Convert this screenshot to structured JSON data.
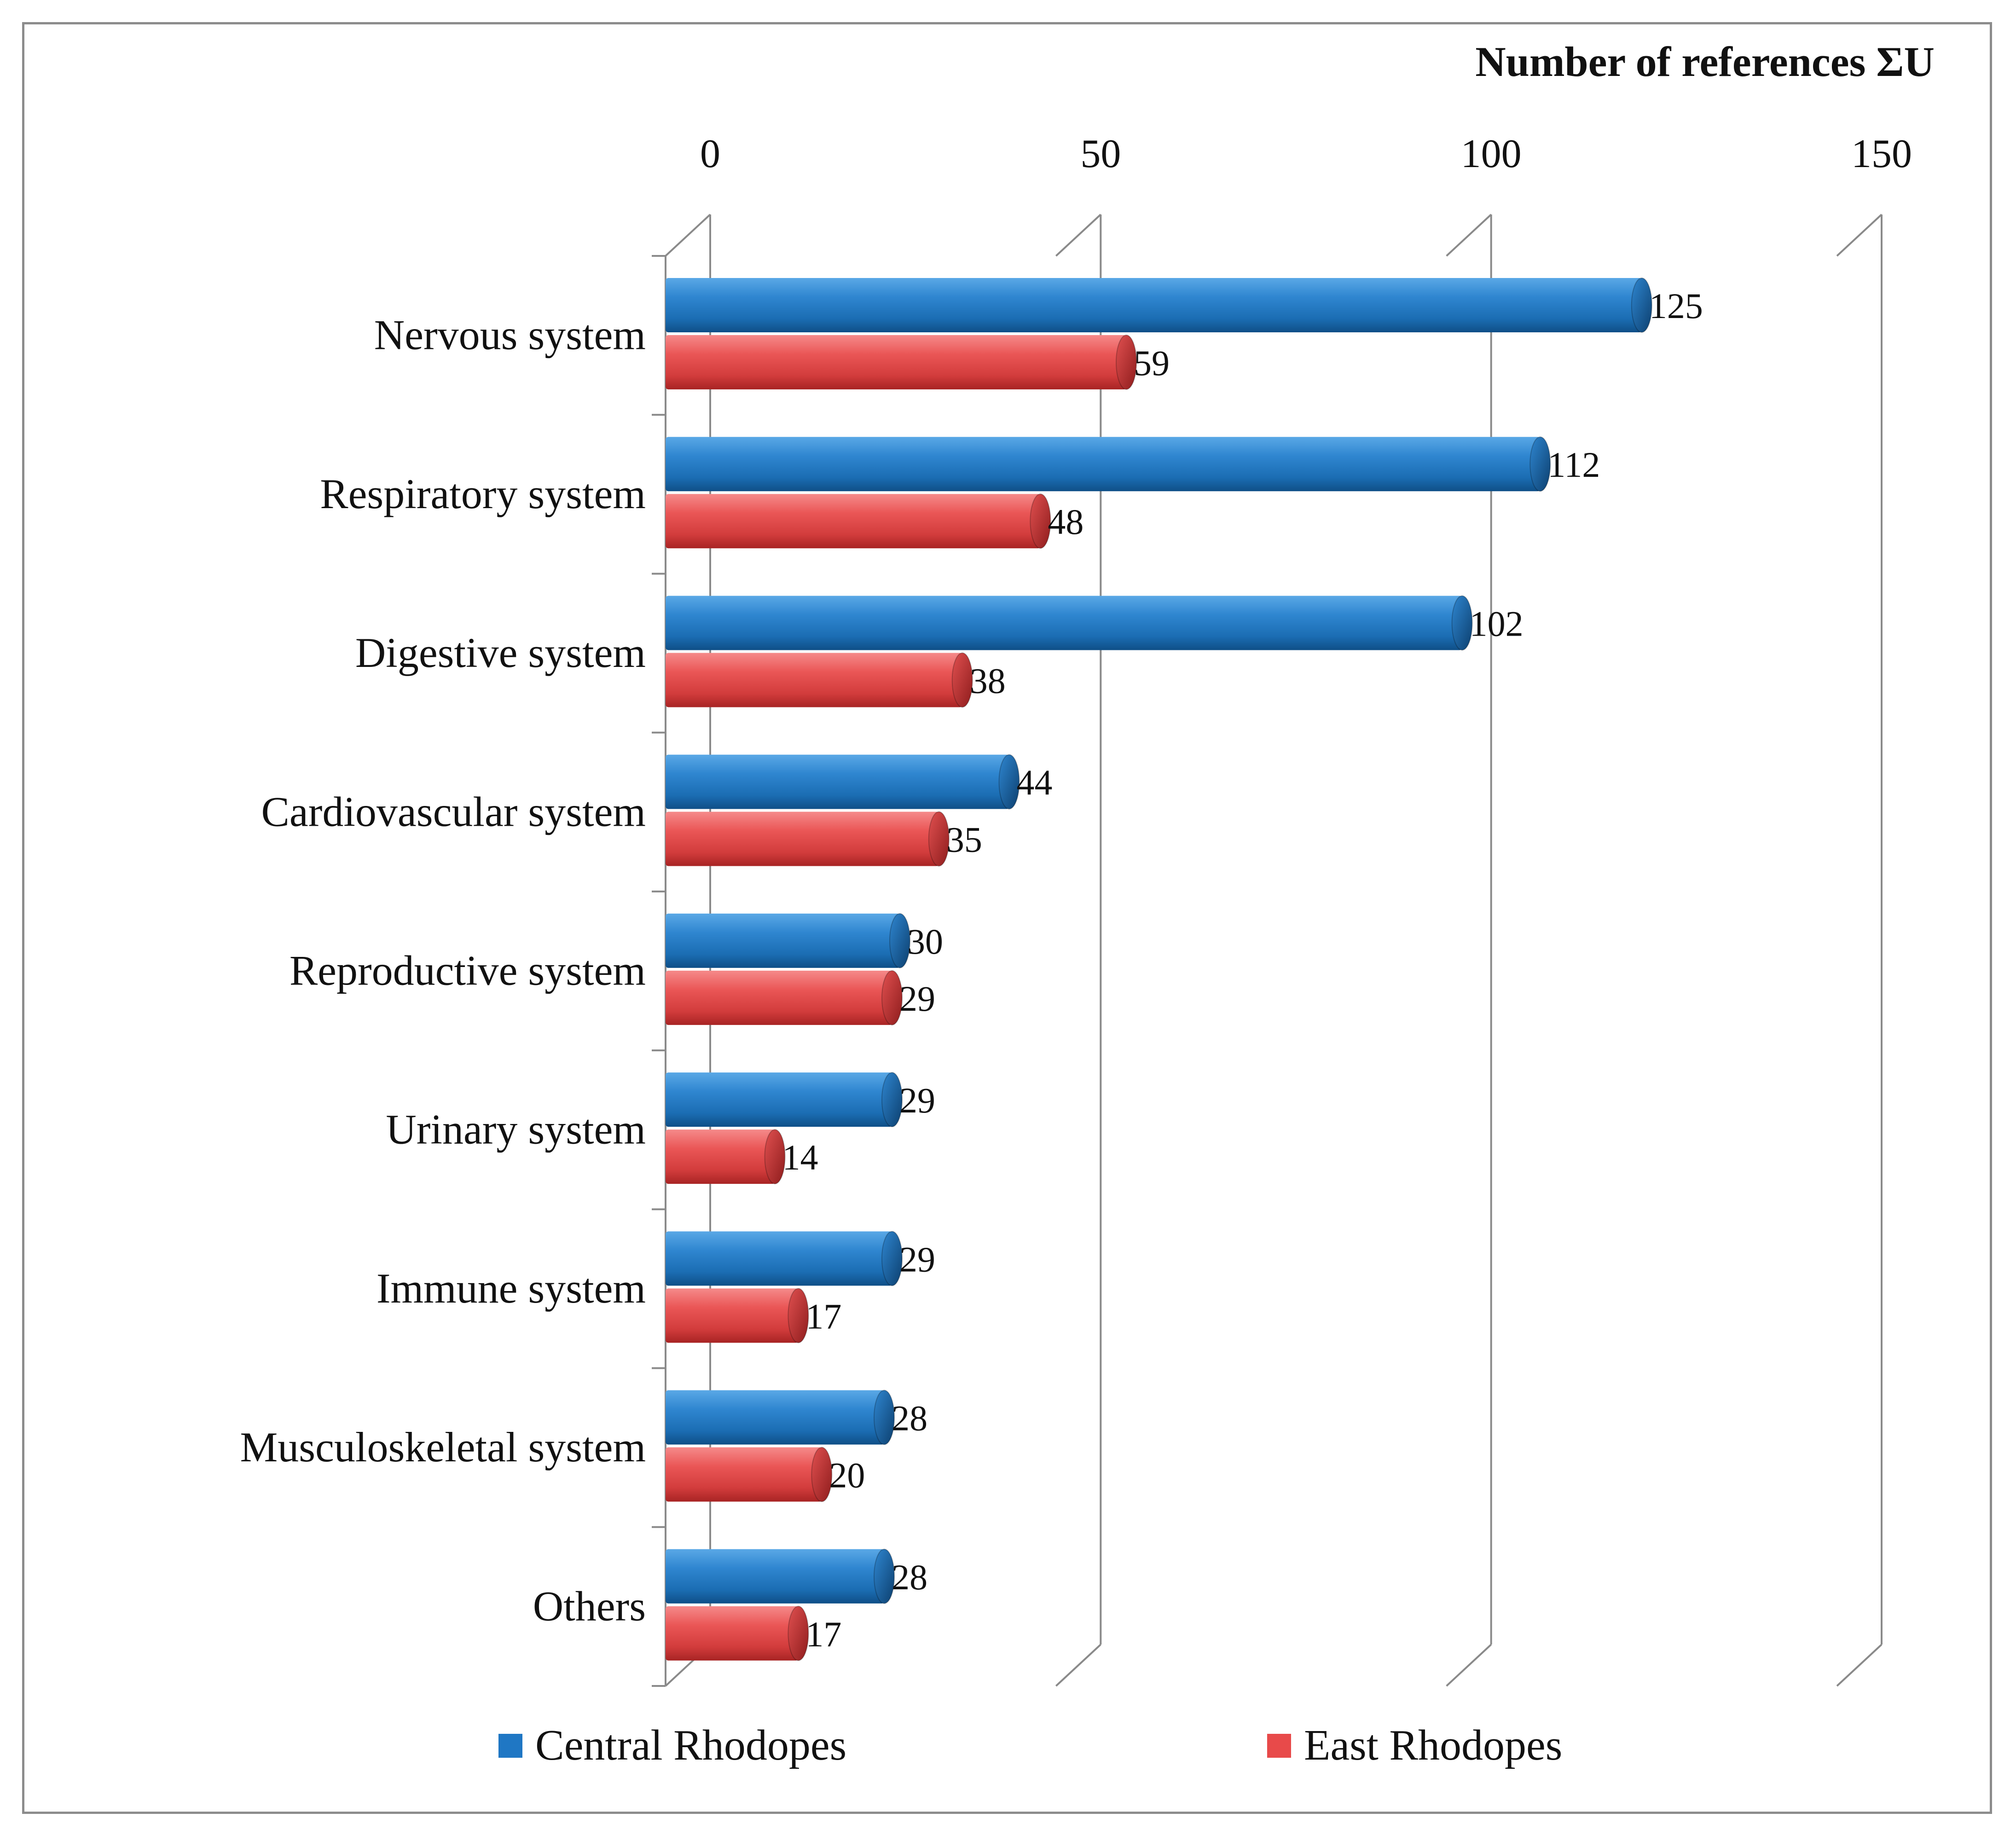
{
  "chart_data": {
    "type": "bar",
    "orientation": "horizontal",
    "style": "3d-cylinder",
    "title": "",
    "xlabel": "Number of references ΣU",
    "ylabel": "",
    "xlim": [
      0,
      150
    ],
    "xticks": [
      "0",
      "50",
      "100",
      "150"
    ],
    "grid": true,
    "legend_position": "bottom",
    "categories": [
      "Nervous system",
      "Respiratory system",
      "Digestive system",
      "Cardiovascular system",
      "Reproductive system",
      "Urinary system",
      "Immune system",
      "Musculoskeletal system",
      "Others"
    ],
    "series": [
      {
        "name": "Central Rhodopes",
        "color": "#1f77c4",
        "values": [
          125,
          112,
          102,
          44,
          30,
          29,
          29,
          28,
          28
        ],
        "labels": [
          "125",
          "112",
          "102",
          "44",
          "30",
          "29",
          "29",
          "28",
          "28"
        ]
      },
      {
        "name": "East Rhodopes",
        "color": "#e84a4a",
        "values": [
          59,
          48,
          38,
          35,
          29,
          14,
          17,
          20,
          17
        ],
        "labels": [
          "59",
          "48",
          "38",
          "35",
          "29",
          "14",
          "17",
          "20",
          "17"
        ]
      }
    ]
  }
}
